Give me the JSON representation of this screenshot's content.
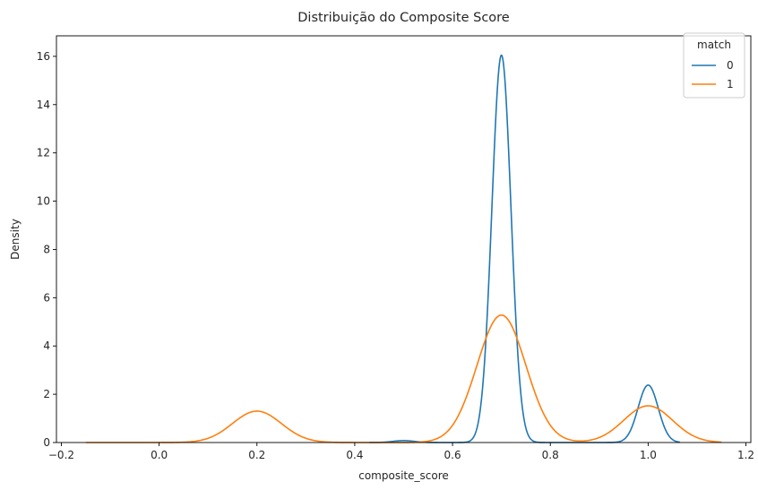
{
  "chart_data": {
    "type": "line",
    "title": "Distribuição do Composite Score",
    "xlabel": "composite_score",
    "ylabel": "Density",
    "xlim": [
      -0.21,
      1.21
    ],
    "ylim": [
      0,
      16.85
    ],
    "xticks": [
      -0.2,
      0.0,
      0.2,
      0.4,
      0.6,
      0.8,
      1.0,
      1.2
    ],
    "xtick_labels": [
      "−0.2",
      "0.0",
      "0.2",
      "0.4",
      "0.6",
      "0.8",
      "1.0",
      "1.2"
    ],
    "yticks": [
      0,
      2,
      4,
      6,
      8,
      10,
      12,
      14,
      16
    ],
    "ytick_labels": [
      "0",
      "2",
      "4",
      "6",
      "8",
      "10",
      "12",
      "14",
      "16"
    ],
    "grid": false,
    "legend": {
      "title": "match",
      "position": "top-right"
    },
    "series": [
      {
        "name": "0",
        "color": "#1f77b4",
        "x_range": [
          0.43,
          1.065
        ],
        "components": [
          {
            "mean": 0.5,
            "sd": 0.022,
            "peak": 0.08
          },
          {
            "mean": 0.7,
            "sd": 0.0195,
            "peak": 16.05
          },
          {
            "mean": 1.0,
            "sd": 0.0205,
            "peak": 2.38
          }
        ]
      },
      {
        "name": "1",
        "color": "#ff7f0e",
        "x_range": [
          -0.15,
          1.15
        ],
        "components": [
          {
            "mean": 0.2,
            "sd": 0.05,
            "peak": 1.3
          },
          {
            "mean": 0.7,
            "sd": 0.05,
            "peak": 5.28
          },
          {
            "mean": 1.0,
            "sd": 0.05,
            "peak": 1.52
          }
        ]
      }
    ]
  }
}
